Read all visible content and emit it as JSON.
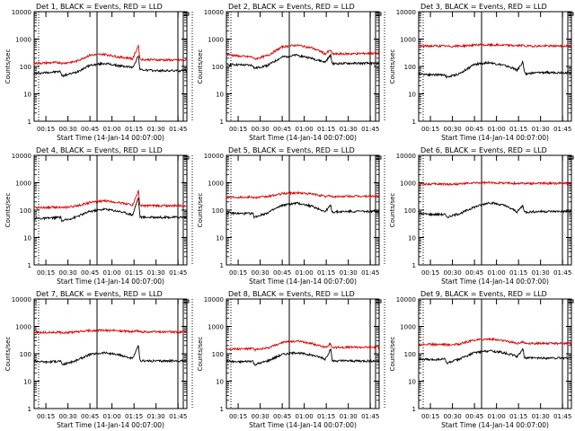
{
  "figure": {
    "background": "#ffffff",
    "events_color": "#000000",
    "lld_color": "#dd0000"
  },
  "chart_data": [
    {
      "type": "line",
      "title": "Det 1, BLACK = Events, RED = LLD",
      "xlabel": "Start Time (14-Jan-14 00:07:00)",
      "ylabel": "Counts/sec",
      "yscale": "log",
      "ylim": [
        1,
        10000
      ],
      "x_ticks": [
        "00:15",
        "00:30",
        "00:45",
        "01:00",
        "01:15",
        "01:30",
        "01:45"
      ],
      "y_ticks": [
        "1",
        "10",
        "100",
        "1000",
        "10000"
      ],
      "series": [
        {
          "name": "Events",
          "color": "#000000",
          "x": [
            "00:07",
            "00:15",
            "00:25",
            "00:26",
            "00:35",
            "00:45",
            "00:55",
            "01:05",
            "01:13",
            "01:14",
            "01:18",
            "01:19",
            "01:20",
            "01:30",
            "01:45"
          ],
          "y": [
            55,
            60,
            65,
            45,
            60,
            110,
            130,
            105,
            95,
            90,
            250,
            80,
            75,
            70,
            70
          ]
        },
        {
          "name": "LLD",
          "color": "#dd0000",
          "x": [
            "00:07",
            "00:15",
            "00:25",
            "00:26",
            "00:35",
            "00:45",
            "00:55",
            "01:05",
            "01:13",
            "01:14",
            "01:18",
            "01:19",
            "01:20",
            "01:30",
            "01:45"
          ],
          "y": [
            130,
            135,
            140,
            130,
            150,
            260,
            280,
            220,
            200,
            180,
            600,
            190,
            180,
            175,
            170
          ]
        }
      ]
    },
    {
      "type": "line",
      "title": "Det 2, BLACK = Events, RED = LLD",
      "xlabel": "Start Time (14-Jan-14 00:07:00)",
      "ylabel": "Counts/sec",
      "yscale": "log",
      "ylim": [
        1,
        10000
      ],
      "x_ticks": [
        "00:15",
        "00:30",
        "00:45",
        "01:00",
        "01:15",
        "01:30",
        "01:45"
      ],
      "y_ticks": [
        "1",
        "10",
        "100",
        "1000",
        "10000"
      ],
      "series": [
        {
          "name": "Events",
          "color": "#000000",
          "x": [
            "00:07",
            "00:15",
            "00:25",
            "00:26",
            "00:35",
            "00:45",
            "00:55",
            "01:05",
            "01:13",
            "01:14",
            "01:18",
            "01:19",
            "01:20",
            "01:30",
            "01:45"
          ],
          "y": [
            120,
            115,
            110,
            85,
            110,
            220,
            260,
            200,
            150,
            140,
            260,
            130,
            125,
            130,
            130
          ]
        },
        {
          "name": "LLD",
          "color": "#dd0000",
          "x": [
            "00:07",
            "00:15",
            "00:25",
            "00:26",
            "00:35",
            "00:45",
            "00:55",
            "01:05",
            "01:13",
            "01:14",
            "01:18",
            "01:19",
            "01:20",
            "01:30",
            "01:45"
          ],
          "y": [
            280,
            240,
            220,
            185,
            250,
            520,
            600,
            480,
            320,
            280,
            400,
            290,
            285,
            290,
            300
          ]
        }
      ]
    },
    {
      "type": "line",
      "title": "Det 3, BLACK = Events, RED = LLD",
      "xlabel": "Start Time (14-Jan-14 00:07:00)",
      "ylabel": "Counts/sec",
      "yscale": "log",
      "ylim": [
        1,
        10000
      ],
      "x_ticks": [
        "00:15",
        "00:30",
        "00:45",
        "01:00",
        "01:15",
        "01:30",
        "01:45"
      ],
      "y_ticks": [
        "1",
        "10",
        "100",
        "1000",
        "10000"
      ],
      "series": [
        {
          "name": "Events",
          "color": "#000000",
          "x": [
            "00:07",
            "00:15",
            "00:25",
            "00:26",
            "00:35",
            "00:45",
            "00:55",
            "01:05",
            "01:13",
            "01:14",
            "01:18",
            "01:19",
            "01:20",
            "01:30",
            "01:45"
          ],
          "y": [
            55,
            50,
            50,
            40,
            55,
            120,
            140,
            110,
            80,
            70,
            150,
            60,
            55,
            60,
            60
          ]
        },
        {
          "name": "LLD",
          "color": "#dd0000",
          "x": [
            "00:07",
            "00:15",
            "00:25",
            "00:26",
            "00:35",
            "00:45",
            "00:55",
            "01:05",
            "01:13",
            "01:14",
            "01:18",
            "01:19",
            "01:20",
            "01:30",
            "01:45"
          ],
          "y": [
            550,
            560,
            560,
            540,
            560,
            600,
            610,
            600,
            580,
            570,
            600,
            560,
            555,
            560,
            560
          ]
        }
      ]
    },
    {
      "type": "line",
      "title": "Det 4, BLACK = Events, RED = LLD",
      "xlabel": "Start Time (14-Jan-14 00:07:00)",
      "ylabel": "Counts/sec",
      "yscale": "log",
      "ylim": [
        1,
        10000
      ],
      "x_ticks": [
        "00:15",
        "00:30",
        "00:45",
        "01:00",
        "01:15",
        "01:30",
        "01:45"
      ],
      "y_ticks": [
        "1",
        "10",
        "100",
        "1000",
        "10000"
      ],
      "series": [
        {
          "name": "Events",
          "color": "#000000",
          "x": [
            "00:07",
            "00:15",
            "00:25",
            "00:26",
            "00:35",
            "00:45",
            "00:55",
            "01:05",
            "01:13",
            "01:14",
            "01:18",
            "01:19",
            "01:20",
            "01:30",
            "01:45"
          ],
          "y": [
            50,
            50,
            55,
            40,
            55,
            90,
            110,
            90,
            70,
            65,
            300,
            60,
            55,
            55,
            55
          ]
        },
        {
          "name": "LLD",
          "color": "#dd0000",
          "x": [
            "00:07",
            "00:15",
            "00:25",
            "00:26",
            "00:35",
            "00:45",
            "00:55",
            "01:05",
            "01:13",
            "01:14",
            "01:18",
            "01:19",
            "01:20",
            "01:30",
            "01:45"
          ],
          "y": [
            125,
            125,
            130,
            120,
            140,
            190,
            220,
            190,
            160,
            150,
            500,
            150,
            145,
            145,
            145
          ]
        }
      ]
    },
    {
      "type": "line",
      "title": "Det 5, BLACK = Events, RED = LLD",
      "xlabel": "Start Time (14-Jan-14 00:07:00)",
      "ylabel": "Counts/sec",
      "yscale": "log",
      "ylim": [
        1,
        10000
      ],
      "x_ticks": [
        "00:15",
        "00:30",
        "00:45",
        "01:00",
        "01:15",
        "01:30",
        "01:45"
      ],
      "y_ticks": [
        "1",
        "10",
        "100",
        "1000",
        "10000"
      ],
      "series": [
        {
          "name": "Events",
          "color": "#000000",
          "x": [
            "00:07",
            "00:15",
            "00:25",
            "00:26",
            "00:35",
            "00:45",
            "00:55",
            "01:05",
            "01:13",
            "01:14",
            "01:18",
            "01:19",
            "01:20",
            "01:30",
            "01:45"
          ],
          "y": [
            80,
            75,
            75,
            55,
            80,
            150,
            180,
            140,
            95,
            85,
            150,
            85,
            85,
            90,
            90
          ]
        },
        {
          "name": "LLD",
          "color": "#dd0000",
          "x": [
            "00:07",
            "00:15",
            "00:25",
            "00:26",
            "00:35",
            "00:45",
            "00:55",
            "01:05",
            "01:13",
            "01:14",
            "01:18",
            "01:19",
            "01:20",
            "01:30",
            "01:45"
          ],
          "y": [
            300,
            300,
            300,
            290,
            310,
            400,
            430,
            390,
            330,
            310,
            340,
            310,
            310,
            320,
            320
          ]
        }
      ]
    },
    {
      "type": "line",
      "title": "Det 6, BLACK = Events, RED = LLD",
      "xlabel": "Start Time (14-Jan-14 00:07:00)",
      "ylabel": "Counts/sec",
      "yscale": "log",
      "ylim": [
        1,
        10000
      ],
      "x_ticks": [
        "00:15",
        "00:30",
        "00:45",
        "01:00",
        "01:15",
        "01:30",
        "01:45"
      ],
      "y_ticks": [
        "1",
        "10",
        "100",
        "1000",
        "10000"
      ],
      "series": [
        {
          "name": "Events",
          "color": "#000000",
          "x": [
            "00:07",
            "00:15",
            "00:25",
            "00:26",
            "00:35",
            "00:45",
            "00:55",
            "01:05",
            "01:13",
            "01:14",
            "01:18",
            "01:19",
            "01:20",
            "01:30",
            "01:45"
          ],
          "y": [
            75,
            70,
            70,
            55,
            75,
            130,
            190,
            150,
            95,
            85,
            150,
            85,
            85,
            90,
            90
          ]
        },
        {
          "name": "LLD",
          "color": "#dd0000",
          "x": [
            "00:07",
            "00:15",
            "00:25",
            "00:26",
            "00:35",
            "00:45",
            "00:55",
            "01:05",
            "01:13",
            "01:14",
            "01:18",
            "01:19",
            "01:20",
            "01:30",
            "01:45"
          ],
          "y": [
            900,
            900,
            900,
            880,
            900,
            980,
            1000,
            990,
            950,
            940,
            970,
            940,
            940,
            950,
            950
          ]
        }
      ]
    },
    {
      "type": "line",
      "title": "Det 7, BLACK = Events, RED = LLD",
      "xlabel": "Start Time (14-Jan-14 00:07:00)",
      "ylabel": "Counts/sec",
      "yscale": "log",
      "ylim": [
        1,
        10000
      ],
      "x_ticks": [
        "00:15",
        "00:30",
        "00:45",
        "01:00",
        "01:15",
        "01:30",
        "01:45"
      ],
      "y_ticks": [
        "1",
        "10",
        "100",
        "1000",
        "10000"
      ],
      "series": [
        {
          "name": "Events",
          "color": "#000000",
          "x": [
            "00:07",
            "00:15",
            "00:25",
            "00:26",
            "00:35",
            "00:45",
            "00:55",
            "01:05",
            "01:13",
            "01:14",
            "01:18",
            "01:19",
            "01:20",
            "01:30",
            "01:45"
          ],
          "y": [
            55,
            50,
            55,
            40,
            55,
            95,
            110,
            90,
            70,
            65,
            200,
            55,
            55,
            55,
            55
          ]
        },
        {
          "name": "LLD",
          "color": "#dd0000",
          "x": [
            "00:07",
            "00:15",
            "00:25",
            "00:26",
            "00:35",
            "00:45",
            "00:55",
            "01:05",
            "01:13",
            "01:14",
            "01:18",
            "01:19",
            "01:20",
            "01:30",
            "01:45"
          ],
          "y": [
            600,
            600,
            610,
            590,
            620,
            700,
            720,
            690,
            650,
            640,
            700,
            630,
            630,
            630,
            630
          ]
        }
      ]
    },
    {
      "type": "line",
      "title": "Det 8, BLACK = Events, RED = LLD",
      "xlabel": "Start Time (14-Jan-14 00:07:00)",
      "ylabel": "Counts/sec",
      "yscale": "log",
      "ylim": [
        1,
        10000
      ],
      "x_ticks": [
        "00:15",
        "00:30",
        "00:45",
        "01:00",
        "01:15",
        "01:30",
        "01:45"
      ],
      "y_ticks": [
        "1",
        "10",
        "100",
        "1000",
        "10000"
      ],
      "series": [
        {
          "name": "Events",
          "color": "#000000",
          "x": [
            "00:07",
            "00:15",
            "00:25",
            "00:26",
            "00:35",
            "00:45",
            "00:55",
            "01:05",
            "01:13",
            "01:14",
            "01:18",
            "01:19",
            "01:20",
            "01:30",
            "01:45"
          ],
          "y": [
            55,
            50,
            55,
            40,
            55,
            95,
            110,
            90,
            70,
            60,
            150,
            55,
            55,
            55,
            55
          ]
        },
        {
          "name": "LLD",
          "color": "#dd0000",
          "x": [
            "00:07",
            "00:15",
            "00:25",
            "00:26",
            "00:35",
            "00:45",
            "00:55",
            "01:05",
            "01:13",
            "01:14",
            "01:18",
            "01:19",
            "01:20",
            "01:30",
            "01:45"
          ],
          "y": [
            150,
            150,
            155,
            140,
            160,
            260,
            290,
            240,
            180,
            170,
            230,
            170,
            170,
            175,
            175
          ]
        }
      ]
    },
    {
      "type": "line",
      "title": "Det 9, BLACK = Events, RED = LLD",
      "xlabel": "Start Time (14-Jan-14 00:07:00)",
      "ylabel": "Counts/sec",
      "yscale": "log",
      "ylim": [
        1,
        10000
      ],
      "x_ticks": [
        "00:15",
        "00:30",
        "00:45",
        "01:00",
        "01:15",
        "01:30",
        "01:45"
      ],
      "y_ticks": [
        "1",
        "10",
        "100",
        "1000",
        "10000"
      ],
      "series": [
        {
          "name": "Events",
          "color": "#000000",
          "x": [
            "00:07",
            "00:15",
            "00:25",
            "00:26",
            "00:35",
            "00:45",
            "00:55",
            "01:05",
            "01:13",
            "01:14",
            "01:18",
            "01:19",
            "01:20",
            "01:30",
            "01:45"
          ],
          "y": [
            65,
            60,
            65,
            45,
            65,
            110,
            130,
            110,
            85,
            75,
            160,
            70,
            70,
            70,
            70
          ]
        },
        {
          "name": "LLD",
          "color": "#dd0000",
          "x": [
            "00:07",
            "00:15",
            "00:25",
            "00:26",
            "00:35",
            "00:45",
            "00:55",
            "01:05",
            "01:13",
            "01:14",
            "01:18",
            "01:19",
            "01:20",
            "01:30",
            "01:45"
          ],
          "y": [
            220,
            220,
            225,
            210,
            230,
            320,
            350,
            300,
            250,
            240,
            280,
            240,
            240,
            240,
            240
          ]
        }
      ]
    }
  ]
}
